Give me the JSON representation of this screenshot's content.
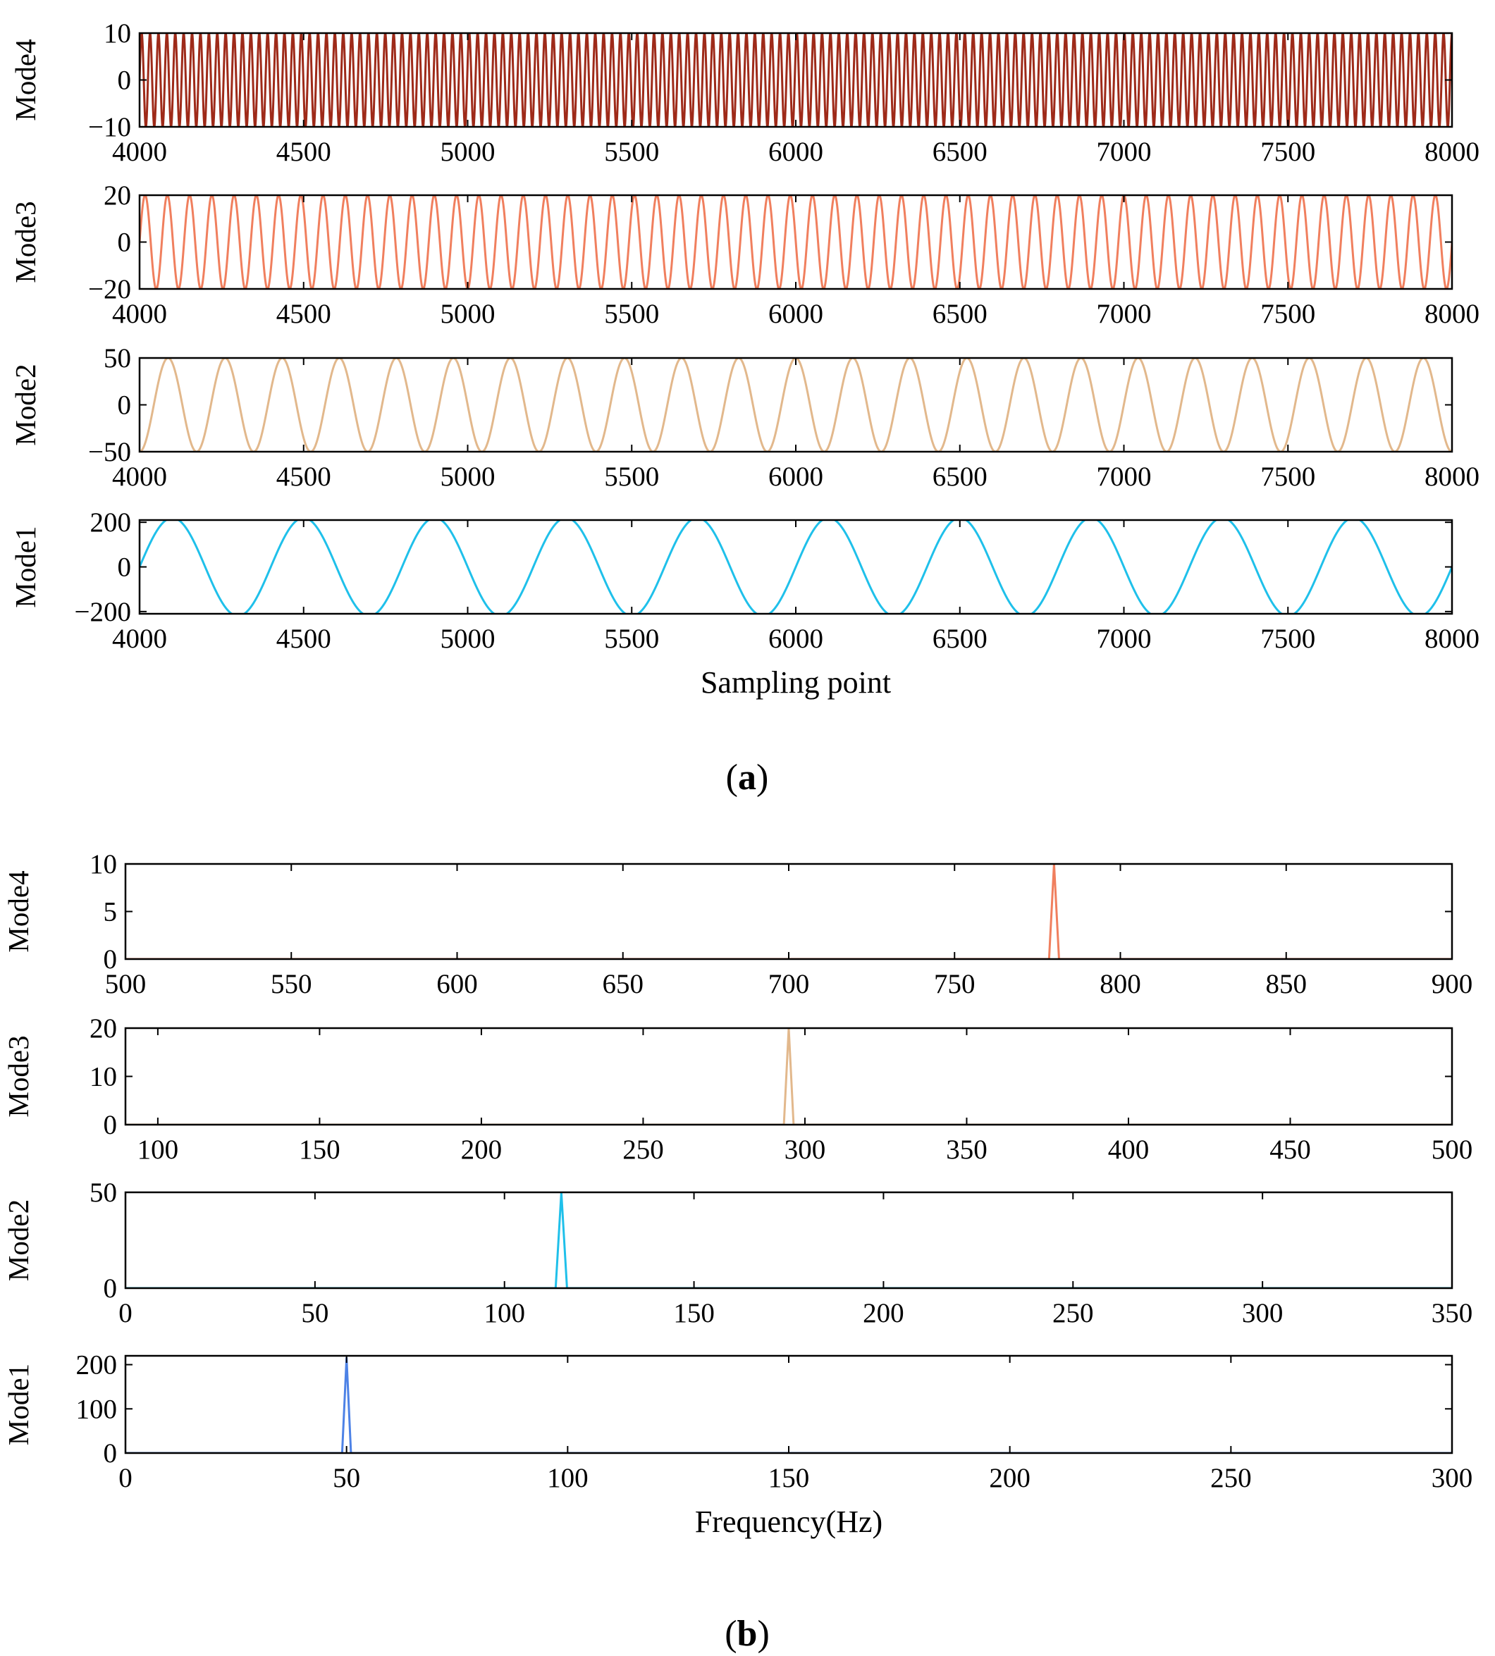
{
  "figure": {
    "caption_a": "a",
    "caption_b": "b"
  },
  "chart_data": [
    {
      "id": "a-mode4",
      "type": "line",
      "panel": "a",
      "title": "",
      "xlabel": "",
      "ylabel": "Mode4",
      "xlim": [
        4000,
        8000
      ],
      "ylim": [
        -10,
        10
      ],
      "xticks": [
        4000,
        4500,
        5000,
        5500,
        6000,
        6500,
        7000,
        7500,
        8000
      ],
      "yticks": [
        -10,
        0,
        10
      ],
      "series": [
        {
          "name": "Mode4",
          "color": "#9E2A19",
          "function": "sine",
          "amplitude": 10,
          "period_samples": 25.6,
          "phase": 0,
          "x_start": 4000,
          "x_end": 8000
        }
      ]
    },
    {
      "id": "a-mode3",
      "type": "line",
      "panel": "a",
      "title": "",
      "xlabel": "",
      "ylabel": "Mode3",
      "xlim": [
        4000,
        8000
      ],
      "ylim": [
        -20,
        20
      ],
      "xticks": [
        4000,
        4500,
        5000,
        5500,
        6000,
        6500,
        7000,
        7500,
        8000
      ],
      "yticks": [
        -20,
        0,
        20
      ],
      "series": [
        {
          "name": "Mode3",
          "color": "#F07F5E",
          "function": "sine",
          "amplitude": 20,
          "period_samples": 67.8,
          "phase": 0,
          "x_start": 4000,
          "x_end": 8000
        }
      ]
    },
    {
      "id": "a-mode2",
      "type": "line",
      "panel": "a",
      "title": "",
      "xlabel": "",
      "ylabel": "Mode2",
      "xlim": [
        4000,
        8000
      ],
      "ylim": [
        -50,
        50
      ],
      "xticks": [
        4000,
        4500,
        5000,
        5500,
        6000,
        6500,
        7000,
        7500,
        8000
      ],
      "yticks": [
        -50,
        0,
        50
      ],
      "series": [
        {
          "name": "Mode2",
          "color": "#E2B88C",
          "function": "sine",
          "amplitude": 50,
          "period_samples": 173.9,
          "phase": -1.5708,
          "x_start": 4000,
          "x_end": 8000
        }
      ]
    },
    {
      "id": "a-mode1",
      "type": "line",
      "panel": "a",
      "title": "",
      "xlabel": "Sampling point",
      "ylabel": "Mode1",
      "xlim": [
        4000,
        8000
      ],
      "ylim": [
        -210,
        210
      ],
      "xticks": [
        4000,
        4500,
        5000,
        5500,
        6000,
        6500,
        7000,
        7500,
        8000
      ],
      "yticks": [
        -200,
        0,
        200
      ],
      "series": [
        {
          "name": "Mode1",
          "color": "#1FC0EA",
          "function": "sine",
          "amplitude": 220,
          "period_samples": 400,
          "phase": 0,
          "x_start": 4000,
          "x_end": 8000
        }
      ]
    },
    {
      "id": "b-mode4",
      "type": "line",
      "panel": "b",
      "title": "",
      "xlabel": "",
      "ylabel": "Mode4",
      "xlim": [
        500,
        900
      ],
      "ylim": [
        0,
        10
      ],
      "xticks": [
        500,
        550,
        600,
        650,
        700,
        750,
        800,
        850,
        900
      ],
      "yticks": [
        0,
        5,
        10
      ],
      "series": [
        {
          "name": "Mode4",
          "color": "#F07F5E",
          "x": [
            500,
            778.5,
            780,
            781.5,
            900
          ],
          "y": [
            0,
            0,
            10,
            0,
            0
          ]
        }
      ]
    },
    {
      "id": "b-mode3",
      "type": "line",
      "panel": "b",
      "title": "",
      "xlabel": "",
      "ylabel": "Mode3",
      "xlim": [
        90,
        500
      ],
      "ylim": [
        0,
        20
      ],
      "xticks": [
        100,
        150,
        200,
        250,
        300,
        350,
        400,
        450,
        500
      ],
      "yticks": [
        0,
        10,
        20
      ],
      "series": [
        {
          "name": "Mode3",
          "color": "#E2B88C",
          "x": [
            90,
            293.5,
            295,
            296.5,
            500
          ],
          "y": [
            0,
            0,
            20,
            0,
            0
          ]
        }
      ]
    },
    {
      "id": "b-mode2",
      "type": "line",
      "panel": "b",
      "title": "",
      "xlabel": "",
      "ylabel": "Mode2",
      "xlim": [
        0,
        350
      ],
      "ylim": [
        0,
        50
      ],
      "xticks": [
        0,
        50,
        100,
        150,
        200,
        250,
        300,
        350
      ],
      "yticks": [
        0,
        50
      ],
      "series": [
        {
          "name": "Mode2",
          "color": "#1FC0EA",
          "x": [
            0,
            113.5,
            115,
            116.5,
            350
          ],
          "y": [
            0,
            0,
            50,
            0,
            0
          ]
        }
      ]
    },
    {
      "id": "b-mode1",
      "type": "line",
      "panel": "b",
      "title": "",
      "xlabel": "Frequency(Hz)",
      "ylabel": "Mode1",
      "xlim": [
        0,
        300
      ],
      "ylim": [
        0,
        220
      ],
      "xticks": [
        0,
        50,
        100,
        150,
        200,
        250,
        300
      ],
      "yticks": [
        0,
        100,
        200
      ],
      "series": [
        {
          "name": "Mode1",
          "color": "#4D82E6",
          "x": [
            0,
            49,
            50,
            51,
            300
          ],
          "y": [
            0,
            0,
            215,
            0,
            0
          ]
        }
      ]
    }
  ]
}
